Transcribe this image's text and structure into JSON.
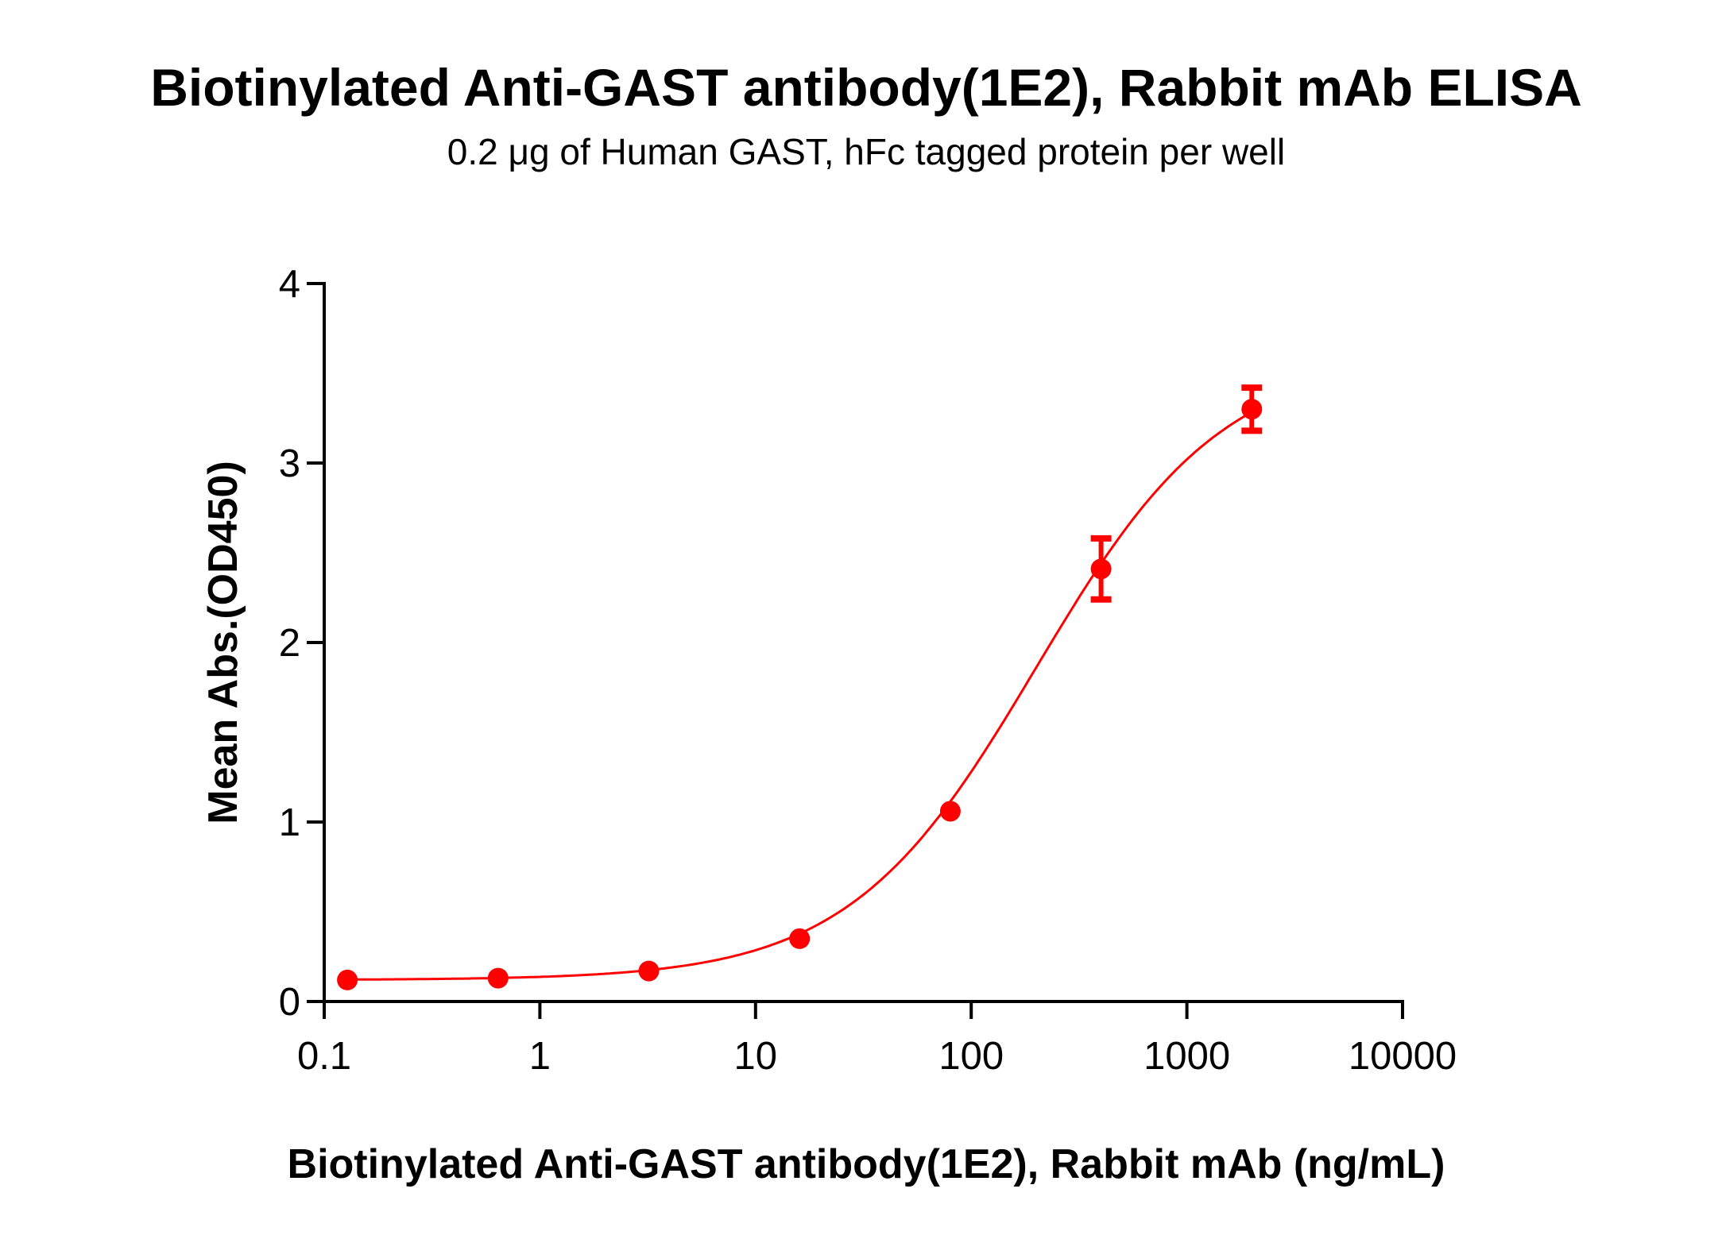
{
  "chart_data": {
    "type": "scatter",
    "title": "Biotinylated Anti-GAST antibody(1E2), Rabbit mAb ELISA",
    "subtitle": "0.2 μg of Human GAST, hFc tagged protein per well",
    "xlabel": "Biotinylated Anti-GAST antibody(1E2), Rabbit mAb (ng/mL)",
    "ylabel": "Mean Abs.(OD450)",
    "xscale": "log",
    "xlim": [
      0.1,
      10000
    ],
    "ylim": [
      0,
      4
    ],
    "xticks": [
      "0.1",
      "1",
      "10",
      "100",
      "1000",
      "10000"
    ],
    "xtick_values": [
      0.1,
      1,
      10,
      100,
      1000,
      10000
    ],
    "yticks": [
      "0",
      "1",
      "2",
      "3",
      "4"
    ],
    "ytick_values": [
      0,
      1,
      2,
      3,
      4
    ],
    "grid": false,
    "color": "#ff0000",
    "fit_curve": "4PL sigmoidal",
    "series": [
      {
        "x": [
          0.128,
          0.64,
          3.2,
          16,
          80,
          400,
          2000
        ],
        "y": [
          0.12,
          0.13,
          0.17,
          0.35,
          1.06,
          2.41,
          3.3
        ],
        "error": [
          0.01,
          0.01,
          0.01,
          0.02,
          0.03,
          0.17,
          0.12
        ]
      }
    ]
  }
}
